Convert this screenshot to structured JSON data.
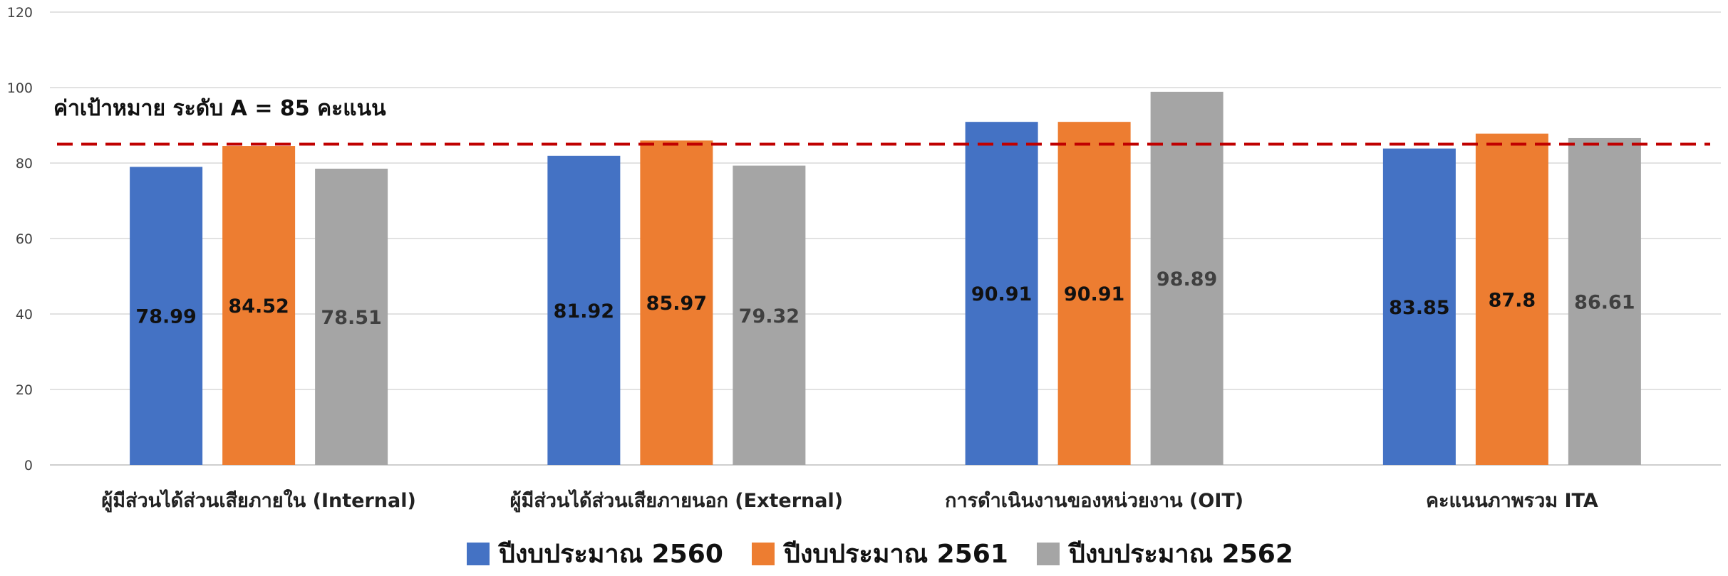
{
  "chart_data": {
    "type": "bar",
    "categories": [
      "ผู้มีส่วนได้ส่วนเสียภายใน (Internal)",
      "ผู้มีส่วนได้ส่วนเสียภายนอก (External)",
      "การดำเนินงานของหน่วยงาน (OIT)",
      "คะแนนภาพรวม ITA"
    ],
    "series": [
      {
        "name": "ปีงบประมาณ 2560",
        "values": [
          78.99,
          81.92,
          90.91,
          83.85
        ],
        "labels": [
          "78.99",
          "81.92",
          "90.91",
          "83.85"
        ],
        "color": "#4472C4",
        "label_color": "#111111"
      },
      {
        "name": "ปีงบประมาณ 2561",
        "values": [
          84.52,
          85.97,
          90.91,
          87.8
        ],
        "labels": [
          "84.52",
          "85.97",
          "90.91",
          "87.8"
        ],
        "color": "#ED7D31",
        "label_color": "#111111"
      },
      {
        "name": "ปีงบประมาณ 2562",
        "values": [
          78.51,
          79.32,
          98.89,
          86.61
        ],
        "labels": [
          "78.51",
          "79.32",
          "98.89",
          "86.61"
        ],
        "color": "#A5A5A5",
        "label_color": "#404040"
      }
    ],
    "yticks": [
      "0",
      "20",
      "40",
      "60",
      "80",
      "100",
      "120"
    ],
    "ylim": [
      0,
      120
    ],
    "grid": true,
    "legend_position": "bottom",
    "reference_line": {
      "value": 85,
      "label": "ค่าเป้าหมาย ระดับ A = 85 คะแนน",
      "color": "#C00000",
      "style": "dashed"
    },
    "gridline_color": "#D9D9D9"
  }
}
